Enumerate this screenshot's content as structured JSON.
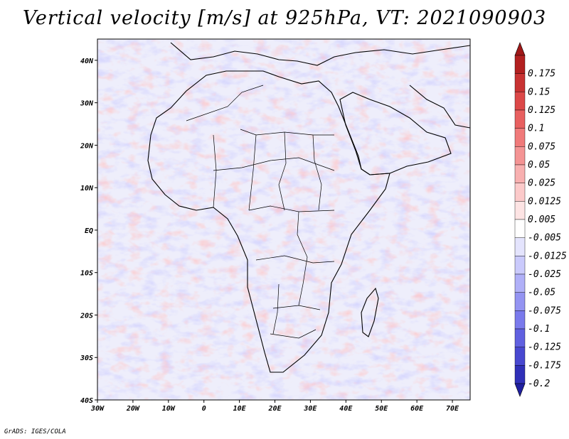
{
  "title": "Vertical velocity [m/s] at 925hPa, VT: 2021090903",
  "credit": "GrADS: IGES/COLA",
  "map": {
    "lon_range": [
      -30,
      75
    ],
    "lat_range": [
      -40,
      45
    ],
    "lat_ticks": [
      {
        "value": 40,
        "label": "40N"
      },
      {
        "value": 30,
        "label": "30N"
      },
      {
        "value": 20,
        "label": "20N"
      },
      {
        "value": 10,
        "label": "10N"
      },
      {
        "value": 0,
        "label": "EQ"
      },
      {
        "value": -10,
        "label": "10S"
      },
      {
        "value": -20,
        "label": "20S"
      },
      {
        "value": -30,
        "label": "30S"
      },
      {
        "value": -40,
        "label": "40S"
      }
    ],
    "lon_ticks": [
      {
        "value": -30,
        "label": "30W"
      },
      {
        "value": -20,
        "label": "20W"
      },
      {
        "value": -10,
        "label": "10W"
      },
      {
        "value": 0,
        "label": "0"
      },
      {
        "value": 10,
        "label": "10E"
      },
      {
        "value": 20,
        "label": "20E"
      },
      {
        "value": 30,
        "label": "30E"
      },
      {
        "value": 40,
        "label": "40E"
      },
      {
        "value": 50,
        "label": "50E"
      },
      {
        "value": 60,
        "label": "60E"
      },
      {
        "value": 70,
        "label": "70E"
      }
    ]
  },
  "colorbar": {
    "levels": [
      {
        "label": "0.175",
        "color": "#b22020"
      },
      {
        "label": "0.15",
        "color": "#c83232"
      },
      {
        "label": "0.125",
        "color": "#dc4848"
      },
      {
        "label": "0.1",
        "color": "#e86060"
      },
      {
        "label": "0.075",
        "color": "#f07a7a"
      },
      {
        "label": "0.05",
        "color": "#f49494"
      },
      {
        "label": "0.025",
        "color": "#f8b0b0"
      },
      {
        "label": "0.0125",
        "color": "#fccaca"
      },
      {
        "label": "0.005",
        "color": "#fde4e4"
      },
      {
        "label": "-0.005",
        "color": "#ffffff"
      },
      {
        "label": "-0.0125",
        "color": "#e4e4fd"
      },
      {
        "label": "-0.025",
        "color": "#cacafc"
      },
      {
        "label": "-0.05",
        "color": "#b0b0f8"
      },
      {
        "label": "-0.075",
        "color": "#9494f2"
      },
      {
        "label": "-0.1",
        "color": "#7a7aec"
      },
      {
        "label": "-0.125",
        "color": "#6060e0"
      },
      {
        "label": "-0.175",
        "color": "#4848d0"
      },
      {
        "label": "-0.2",
        "color": "#3030b8"
      }
    ],
    "top_color": "#a01818",
    "bottom_color": "#2020a0"
  }
}
